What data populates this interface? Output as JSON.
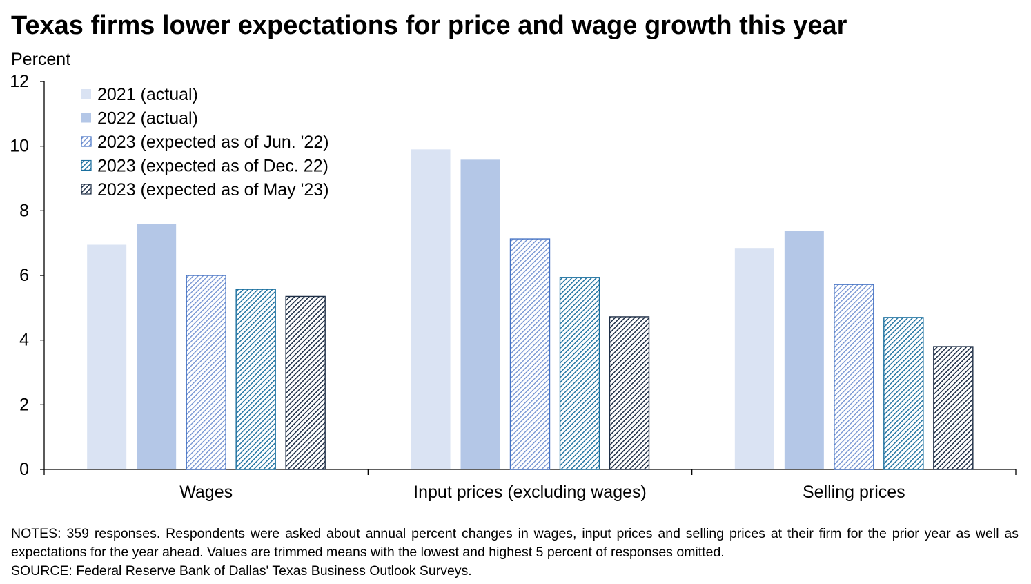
{
  "title": "Texas firms lower expectations for price and wage growth this year",
  "y_unit": "Percent",
  "notes": {
    "line1": "NOTES: 359 responses. Respondents were asked about annual percent changes in wages, input prices and selling prices at their firm for the prior year as well as expectations for the year ahead. Values are trimmed means with the lowest and highest 5 percent of responses omitted.",
    "line2": "SOURCE: Federal Reserve Bank of Dallas' Texas Business Outlook Surveys."
  },
  "chart_data": {
    "type": "bar",
    "title": "Texas firms lower expectations for price and wage growth this year",
    "ylabel": "Percent",
    "xlabel": "",
    "ylim": [
      0,
      12
    ],
    "yticks": [
      0,
      2,
      4,
      6,
      8,
      10,
      12
    ],
    "grid": false,
    "legend_position": "top-left",
    "categories": [
      "Wages",
      "Input prices (excluding wages)",
      "Selling prices"
    ],
    "series": [
      {
        "name": "2021 (actual)",
        "values": [
          6.95,
          9.9,
          6.85
        ],
        "color": "#dae3f3",
        "pattern": "solid"
      },
      {
        "name": "2022 (actual)",
        "values": [
          7.58,
          9.58,
          7.37
        ],
        "color": "#b4c7e7",
        "pattern": "solid"
      },
      {
        "name": "2023 (expected as of Jun. '22)",
        "values": [
          6.0,
          7.13,
          5.72
        ],
        "color": "#4472c4",
        "pattern": "hatched-light"
      },
      {
        "name": "2023 (expected as of Dec. 22)",
        "values": [
          5.57,
          5.94,
          4.7
        ],
        "color": "#1f6fa5",
        "pattern": "hatched-teal"
      },
      {
        "name": "2023 (expected as of May '23)",
        "values": [
          5.35,
          4.72,
          3.8
        ],
        "color": "#203864",
        "pattern": "hatched-dark"
      }
    ]
  }
}
